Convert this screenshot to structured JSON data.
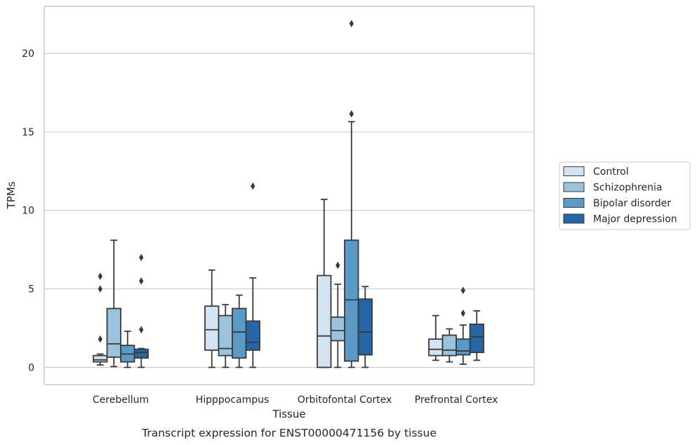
{
  "caption": "Transcript expression for ENST00000471156 by tissue",
  "chart_data": {
    "type": "box",
    "title": "",
    "xlabel": "Tissue",
    "ylabel": "TPMs",
    "ylim": [
      -1.1,
      23.0
    ],
    "yticks": [
      0,
      5,
      10,
      15,
      20
    ],
    "grid": "horizontal",
    "legend_placement": "right",
    "categories": [
      "Cerebellum",
      "Hipppocampus",
      "Orbitofontal Cortex",
      "Prefrontal Cortex"
    ],
    "series": [
      {
        "name": "Control",
        "color": "#d3e3f1",
        "boxes": [
          {
            "q1": 0.35,
            "median": 0.48,
            "q3": 0.75,
            "whisker_low": 0.15,
            "whisker_high": 0.85,
            "outliers": [
              1.8,
              5.0,
              5.8
            ]
          },
          {
            "q1": 1.1,
            "median": 2.4,
            "q3": 3.9,
            "whisker_low": 0.0,
            "whisker_high": 6.2,
            "outliers": []
          },
          {
            "q1": 0.0,
            "median": 2.0,
            "q3": 5.85,
            "whisker_low": 0.0,
            "whisker_high": 10.7,
            "outliers": []
          },
          {
            "q1": 0.75,
            "median": 1.15,
            "q3": 1.8,
            "whisker_low": 0.45,
            "whisker_high": 3.3,
            "outliers": []
          }
        ]
      },
      {
        "name": "Schizophrenia",
        "color": "#9cc3de",
        "boxes": [
          {
            "q1": 0.65,
            "median": 1.5,
            "q3": 3.75,
            "whisker_low": 0.05,
            "whisker_high": 8.1,
            "outliers": []
          },
          {
            "q1": 0.75,
            "median": 1.2,
            "q3": 3.3,
            "whisker_low": 0.0,
            "whisker_high": 4.0,
            "outliers": []
          },
          {
            "q1": 1.7,
            "median": 2.35,
            "q3": 3.2,
            "whisker_low": 0.0,
            "whisker_high": 5.3,
            "outliers": [
              6.5
            ]
          },
          {
            "q1": 0.75,
            "median": 1.1,
            "q3": 2.05,
            "whisker_low": 0.35,
            "whisker_high": 2.45,
            "outliers": []
          }
        ]
      },
      {
        "name": "Bipolar disorder",
        "color": "#5a9ac6",
        "boxes": [
          {
            "q1": 0.35,
            "median": 0.85,
            "q3": 1.4,
            "whisker_low": 0.0,
            "whisker_high": 2.3,
            "outliers": []
          },
          {
            "q1": 0.6,
            "median": 2.25,
            "q3": 3.75,
            "whisker_low": 0.0,
            "whisker_high": 4.6,
            "outliers": []
          },
          {
            "q1": 0.4,
            "median": 4.3,
            "q3": 8.1,
            "whisker_low": 0.0,
            "whisker_high": 15.65,
            "outliers": [
              16.15,
              21.9
            ]
          },
          {
            "q1": 0.8,
            "median": 1.05,
            "q3": 1.8,
            "whisker_low": 0.2,
            "whisker_high": 2.7,
            "outliers": [
              3.45,
              4.9
            ]
          }
        ]
      },
      {
        "name": "Major depression",
        "color": "#2666a7",
        "boxes": [
          {
            "q1": 0.6,
            "median": 0.95,
            "q3": 1.15,
            "whisker_low": 0.0,
            "whisker_high": 1.2,
            "outliers": [
              2.4,
              5.5,
              7.0
            ]
          },
          {
            "q1": 1.1,
            "median": 1.6,
            "q3": 2.95,
            "whisker_low": 0.0,
            "whisker_high": 5.7,
            "outliers": [
              11.55
            ]
          },
          {
            "q1": 0.8,
            "median": 2.25,
            "q3": 4.35,
            "whisker_low": 0.0,
            "whisker_high": 5.15,
            "outliers": []
          },
          {
            "q1": 0.95,
            "median": 1.95,
            "q3": 2.75,
            "whisker_low": 0.45,
            "whisker_high": 3.6,
            "outliers": []
          }
        ]
      }
    ]
  }
}
